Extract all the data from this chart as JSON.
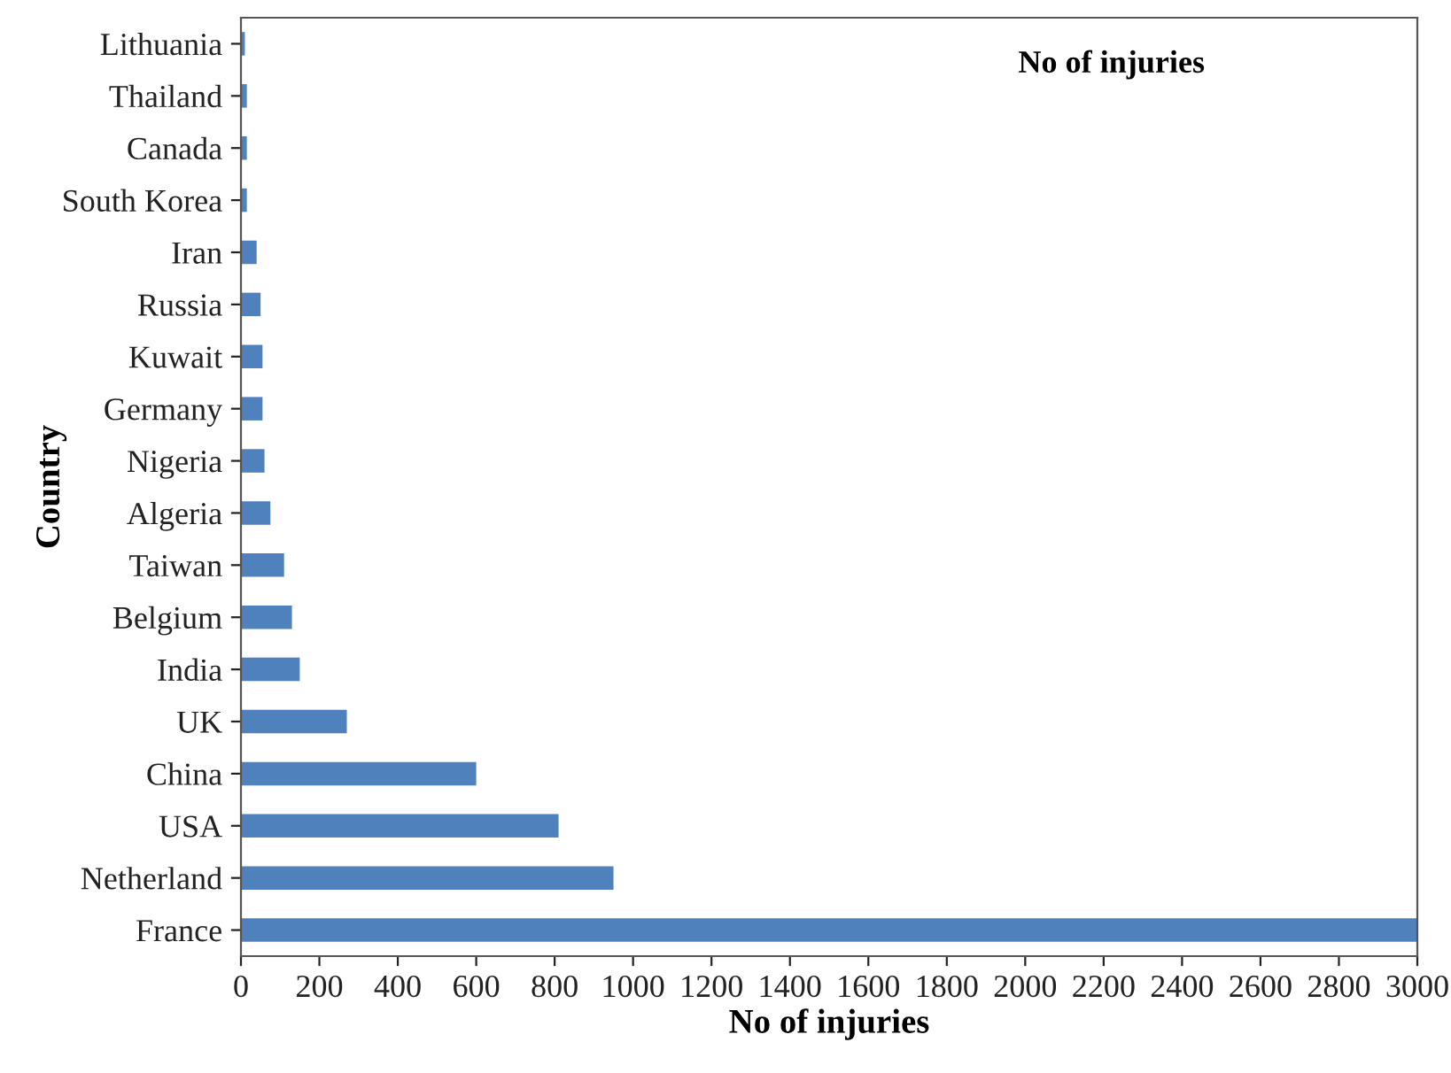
{
  "chart_data": {
    "type": "bar",
    "orientation": "horizontal",
    "title": "No of injuries",
    "xlabel": "No of injuries",
    "ylabel": "Country",
    "categories": [
      "Lithuania",
      "Thailand",
      "Canada",
      "South Korea",
      "Iran",
      "Russia",
      "Kuwait",
      "Germany",
      "Nigeria",
      "Algeria",
      "Taiwan",
      "Belgium",
      "India",
      "UK",
      "China",
      "USA",
      "Netherland",
      "France"
    ],
    "values": [
      10,
      15,
      15,
      15,
      40,
      50,
      55,
      55,
      60,
      75,
      110,
      130,
      150,
      270,
      600,
      810,
      950,
      3000
    ],
    "color": "#4f81bd",
    "xlim": [
      0,
      3000
    ],
    "xticks": [
      0,
      200,
      400,
      600,
      800,
      1000,
      1200,
      1400,
      1600,
      1800,
      2000,
      2200,
      2400,
      2600,
      2800,
      3000
    ],
    "grid": false,
    "legend": false
  }
}
